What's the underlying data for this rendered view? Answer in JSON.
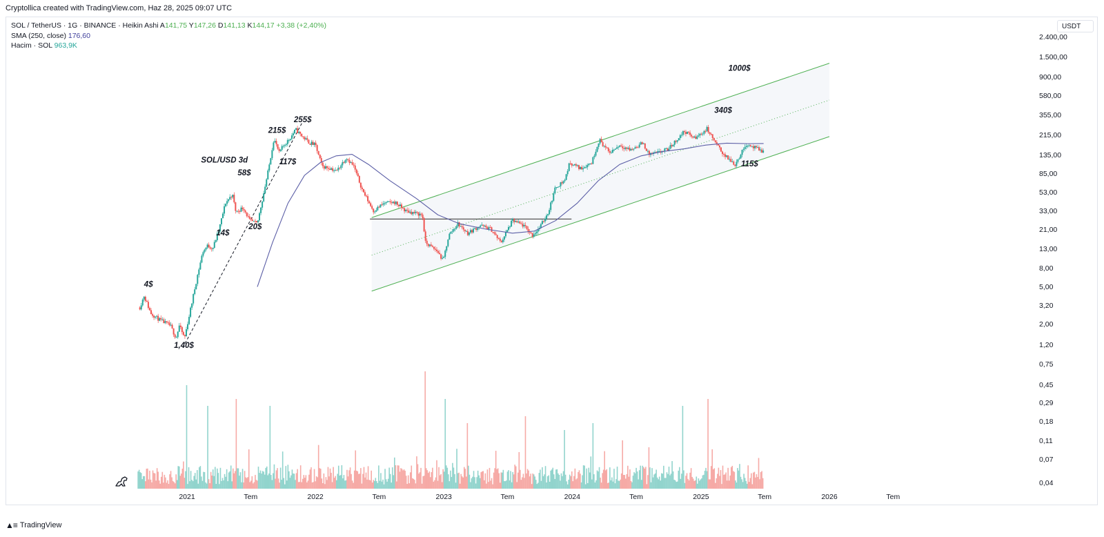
{
  "header": {
    "credit": "Cryptollica created with TradingView.com, Haz 28, 2025 09:07 UTC"
  },
  "legend": {
    "symbol": "SOL / TetherUS · 1G · BINANCE · Heikin Ashi",
    "a_label": "A",
    "a_value": "141,75",
    "y_label": "Y",
    "y_value": "147,26",
    "d_label": "D",
    "d_value": "141,13",
    "k_label": "K",
    "k_value": "144,17",
    "change": "+3,38 (+2,40%)",
    "sma_label": "SMA (250, close)",
    "sma_value": "176,60",
    "volume_label": "Hacim · SOL",
    "volume_value": "963,9K"
  },
  "currency_button": "USDT",
  "footer": {
    "brand": "TradingView"
  },
  "colors": {
    "up": "#26a69a",
    "down": "#ef5350",
    "sma": "#5b5ea6",
    "channel": "#4caf50",
    "accent": "#2962ff"
  },
  "icons": {
    "logo": "tradingview-logo-icon",
    "dino": "dinosaur-icon"
  },
  "chart_data": {
    "type": "line",
    "title": "SOL / TetherUS · 1G · BINANCE · Heikin Ashi",
    "scale": "log",
    "y_ticks": [
      "2.400,00",
      "1.500,00",
      "900,00",
      "580,00",
      "355,00",
      "215,00",
      "135,00",
      "85,00",
      "53,00",
      "33,00",
      "21,00",
      "13,00",
      "8,00",
      "5,00",
      "3,20",
      "2,00",
      "1,20",
      "0,75",
      "0,45",
      "0,29",
      "0,18",
      "0,11",
      "0,07",
      "0,04"
    ],
    "x_ticks": [
      "2021",
      "Tem",
      "2022",
      "Tem",
      "2023",
      "Tem",
      "2024",
      "Tem",
      "2025",
      "Tem",
      "2026",
      "Tem"
    ],
    "x_tick_dates": [
      "2021-01-01",
      "2021-07-01",
      "2022-01-01",
      "2022-07-01",
      "2023-01-01",
      "2023-07-01",
      "2024-01-01",
      "2024-07-01",
      "2025-01-01",
      "2025-07-01",
      "2026-01-01",
      "2026-07-01"
    ],
    "series": [
      {
        "values": [
          {
            "x": "2020-08-20",
            "y": 3.0
          },
          {
            "x": "2020-09-01",
            "y": 4.0
          },
          {
            "x": "2020-09-20",
            "y": 2.6
          },
          {
            "x": "2020-10-15",
            "y": 2.2
          },
          {
            "x": "2020-11-15",
            "y": 1.9
          },
          {
            "x": "2020-12-01",
            "y": 1.4
          },
          {
            "x": "2020-12-10",
            "y": 1.9
          },
          {
            "x": "2020-12-25",
            "y": 1.4
          },
          {
            "x": "2021-01-15",
            "y": 3.4
          },
          {
            "x": "2021-02-01",
            "y": 7
          },
          {
            "x": "2021-02-15",
            "y": 12
          },
          {
            "x": "2021-03-01",
            "y": 14
          },
          {
            "x": "2021-03-15",
            "y": 13
          },
          {
            "x": "2021-04-01",
            "y": 20
          },
          {
            "x": "2021-04-20",
            "y": 40
          },
          {
            "x": "2021-05-10",
            "y": 50
          },
          {
            "x": "2021-05-20",
            "y": 32
          },
          {
            "x": "2021-06-10",
            "y": 36
          },
          {
            "x": "2021-06-28",
            "y": 26
          },
          {
            "x": "2021-07-20",
            "y": 24
          },
          {
            "x": "2021-08-01",
            "y": 40
          },
          {
            "x": "2021-08-20",
            "y": 90
          },
          {
            "x": "2021-09-05",
            "y": 200
          },
          {
            "x": "2021-09-20",
            "y": 140
          },
          {
            "x": "2021-10-01",
            "y": 165
          },
          {
            "x": "2021-10-20",
            "y": 200
          },
          {
            "x": "2021-11-06",
            "y": 250
          },
          {
            "x": "2021-11-25",
            "y": 210
          },
          {
            "x": "2021-12-15",
            "y": 180
          },
          {
            "x": "2022-01-01",
            "y": 170
          },
          {
            "x": "2022-01-20",
            "y": 100
          },
          {
            "x": "2022-02-15",
            "y": 95
          },
          {
            "x": "2022-03-01",
            "y": 88
          },
          {
            "x": "2022-03-30",
            "y": 125
          },
          {
            "x": "2022-04-20",
            "y": 100
          },
          {
            "x": "2022-05-15",
            "y": 55
          },
          {
            "x": "2022-06-15",
            "y": 33
          },
          {
            "x": "2022-07-15",
            "y": 40
          },
          {
            "x": "2022-08-15",
            "y": 41
          },
          {
            "x": "2022-09-15",
            "y": 33
          },
          {
            "x": "2022-10-15",
            "y": 31
          },
          {
            "x": "2022-11-01",
            "y": 30
          },
          {
            "x": "2022-11-10",
            "y": 15
          },
          {
            "x": "2022-12-15",
            "y": 12
          },
          {
            "x": "2022-12-30",
            "y": 9.5
          },
          {
            "x": "2023-01-15",
            "y": 18
          },
          {
            "x": "2023-02-10",
            "y": 24
          },
          {
            "x": "2023-03-10",
            "y": 19
          },
          {
            "x": "2023-04-15",
            "y": 23
          },
          {
            "x": "2023-05-15",
            "y": 21
          },
          {
            "x": "2023-06-12",
            "y": 15
          },
          {
            "x": "2023-07-15",
            "y": 26
          },
          {
            "x": "2023-08-15",
            "y": 23
          },
          {
            "x": "2023-09-10",
            "y": 18
          },
          {
            "x": "2023-10-01",
            "y": 22
          },
          {
            "x": "2023-10-25",
            "y": 32
          },
          {
            "x": "2023-11-15",
            "y": 60
          },
          {
            "x": "2023-12-10",
            "y": 70
          },
          {
            "x": "2023-12-25",
            "y": 110
          },
          {
            "x": "2024-01-25",
            "y": 95
          },
          {
            "x": "2024-02-25",
            "y": 110
          },
          {
            "x": "2024-03-18",
            "y": 195
          },
          {
            "x": "2024-04-15",
            "y": 140
          },
          {
            "x": "2024-05-15",
            "y": 170
          },
          {
            "x": "2024-06-15",
            "y": 150
          },
          {
            "x": "2024-07-20",
            "y": 180
          },
          {
            "x": "2024-08-05",
            "y": 135
          },
          {
            "x": "2024-09-01",
            "y": 140
          },
          {
            "x": "2024-10-01",
            "y": 155
          },
          {
            "x": "2024-11-15",
            "y": 240
          },
          {
            "x": "2024-12-15",
            "y": 200
          },
          {
            "x": "2025-01-18",
            "y": 255
          },
          {
            "x": "2025-02-15",
            "y": 170
          },
          {
            "x": "2025-03-10",
            "y": 130
          },
          {
            "x": "2025-04-08",
            "y": 105
          },
          {
            "x": "2025-05-10",
            "y": 175
          },
          {
            "x": "2025-06-01",
            "y": 160
          },
          {
            "x": "2025-06-28",
            "y": 144
          }
        ]
      },
      {
        "name": "SMA (250, close)",
        "values": [
          {
            "x": "2021-07-20",
            "y": 5
          },
          {
            "x": "2021-09-01",
            "y": 15
          },
          {
            "x": "2021-10-15",
            "y": 40
          },
          {
            "x": "2021-12-01",
            "y": 80
          },
          {
            "x": "2022-01-15",
            "y": 110
          },
          {
            "x": "2022-03-01",
            "y": 130
          },
          {
            "x": "2022-04-15",
            "y": 135
          },
          {
            "x": "2022-06-01",
            "y": 105
          },
          {
            "x": "2022-08-01",
            "y": 70
          },
          {
            "x": "2022-10-15",
            "y": 45
          },
          {
            "x": "2022-12-15",
            "y": 30
          },
          {
            "x": "2023-02-15",
            "y": 24
          },
          {
            "x": "2023-05-01",
            "y": 21
          },
          {
            "x": "2023-07-15",
            "y": 19
          },
          {
            "x": "2023-09-15",
            "y": 20
          },
          {
            "x": "2023-11-15",
            "y": 26
          },
          {
            "x": "2024-01-15",
            "y": 40
          },
          {
            "x": "2024-03-15",
            "y": 70
          },
          {
            "x": "2024-05-15",
            "y": 105
          },
          {
            "x": "2024-07-15",
            "y": 130
          },
          {
            "x": "2024-09-15",
            "y": 145
          },
          {
            "x": "2024-11-15",
            "y": 155
          },
          {
            "x": "2025-01-15",
            "y": 170
          },
          {
            "x": "2025-03-15",
            "y": 178
          },
          {
            "x": "2025-05-15",
            "y": 176
          },
          {
            "x": "2025-06-28",
            "y": 176.6
          }
        ]
      }
    ],
    "volume": {
      "name": "Hacim · SOL",
      "last": "963,9K",
      "from": "2020-08-15",
      "to": "2025-06-28"
    },
    "channel": {
      "lower": [
        {
          "x": "2022-06-10",
          "y": 4.5
        },
        {
          "x": "2026-01-01",
          "y": 210
        }
      ],
      "upper": [
        {
          "x": "2022-06-10",
          "y": 28
        },
        {
          "x": "2026-01-01",
          "y": 1300
        }
      ],
      "mid": [
        {
          "x": "2022-06-10",
          "y": 11
        },
        {
          "x": "2026-01-01",
          "y": 520
        }
      ]
    },
    "support_line": [
      {
        "x": "2022-06-05",
        "y": 27
      },
      {
        "x": "2023-12-30",
        "y": 27
      }
    ],
    "trendline": [
      {
        "x": "2020-12-20",
        "y": 1.1
      },
      {
        "x": "2021-11-25",
        "y": 300
      }
    ],
    "annotations": [
      {
        "text": "4$",
        "x": "2020-09-01",
        "y": 5.0
      },
      {
        "text": "1,40$",
        "x": "2020-11-25",
        "y": 1.1
      },
      {
        "text": "14$",
        "x": "2021-03-25",
        "y": 18
      },
      {
        "text": "58$",
        "x": "2021-05-25",
        "y": 80
      },
      {
        "text": "20$",
        "x": "2021-06-25",
        "y": 21
      },
      {
        "text": "215$",
        "x": "2021-08-20",
        "y": 230
      },
      {
        "text": "117$",
        "x": "2021-09-20",
        "y": 105
      },
      {
        "text": "255$",
        "x": "2021-11-01",
        "y": 300
      },
      {
        "text": "SOL/USD 3d",
        "x": "2021-02-10",
        "y": 110
      },
      {
        "text": "340$",
        "x": "2025-02-08",
        "y": 380
      },
      {
        "text": "1000$",
        "x": "2025-03-20",
        "y": 1080
      },
      {
        "text": "115$",
        "x": "2025-04-25",
        "y": 100
      }
    ]
  }
}
